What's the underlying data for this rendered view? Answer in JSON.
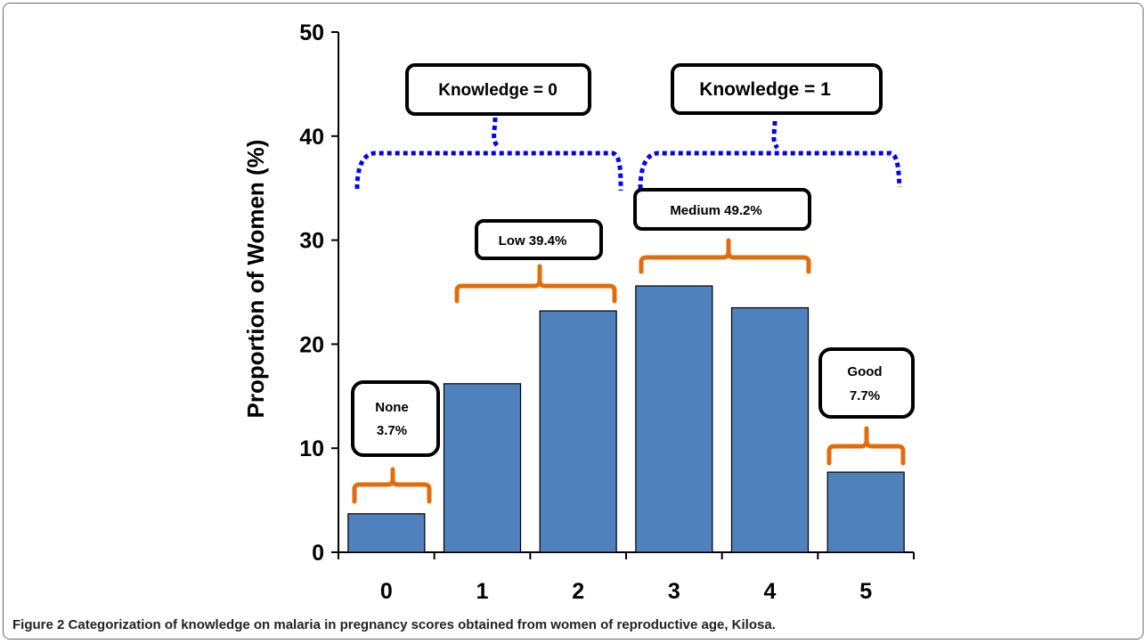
{
  "chart_data": {
    "type": "bar",
    "categories": [
      "0",
      "1",
      "2",
      "3",
      "4",
      "5"
    ],
    "values": [
      3.7,
      16.2,
      23.2,
      25.6,
      23.5,
      7.7
    ],
    "ylabel": "Proportion of Women (%)",
    "xlabel": "",
    "ylim": [
      0,
      50
    ],
    "yticks": [
      "0",
      "10",
      "20",
      "30",
      "40",
      "50"
    ],
    "grid": false,
    "bar_color": "#4f81bd",
    "annotations": {
      "none": [
        "None",
        "3.7%"
      ],
      "low": "Low 39.4%",
      "medium": "Medium 49.2%",
      "good": [
        "Good",
        "7.7%"
      ],
      "knowledge0": "Knowledge = 0",
      "knowledge1": "Knowledge = 1"
    },
    "bracket_color_level": "#e36c0a",
    "bracket_color_knowledge": "#0000ff"
  },
  "caption": {
    "label": "Figure 2",
    "text": "Categorization of knowledge on malaria in pregnancy scores obtained from women of reproductive age, Kilosa."
  }
}
